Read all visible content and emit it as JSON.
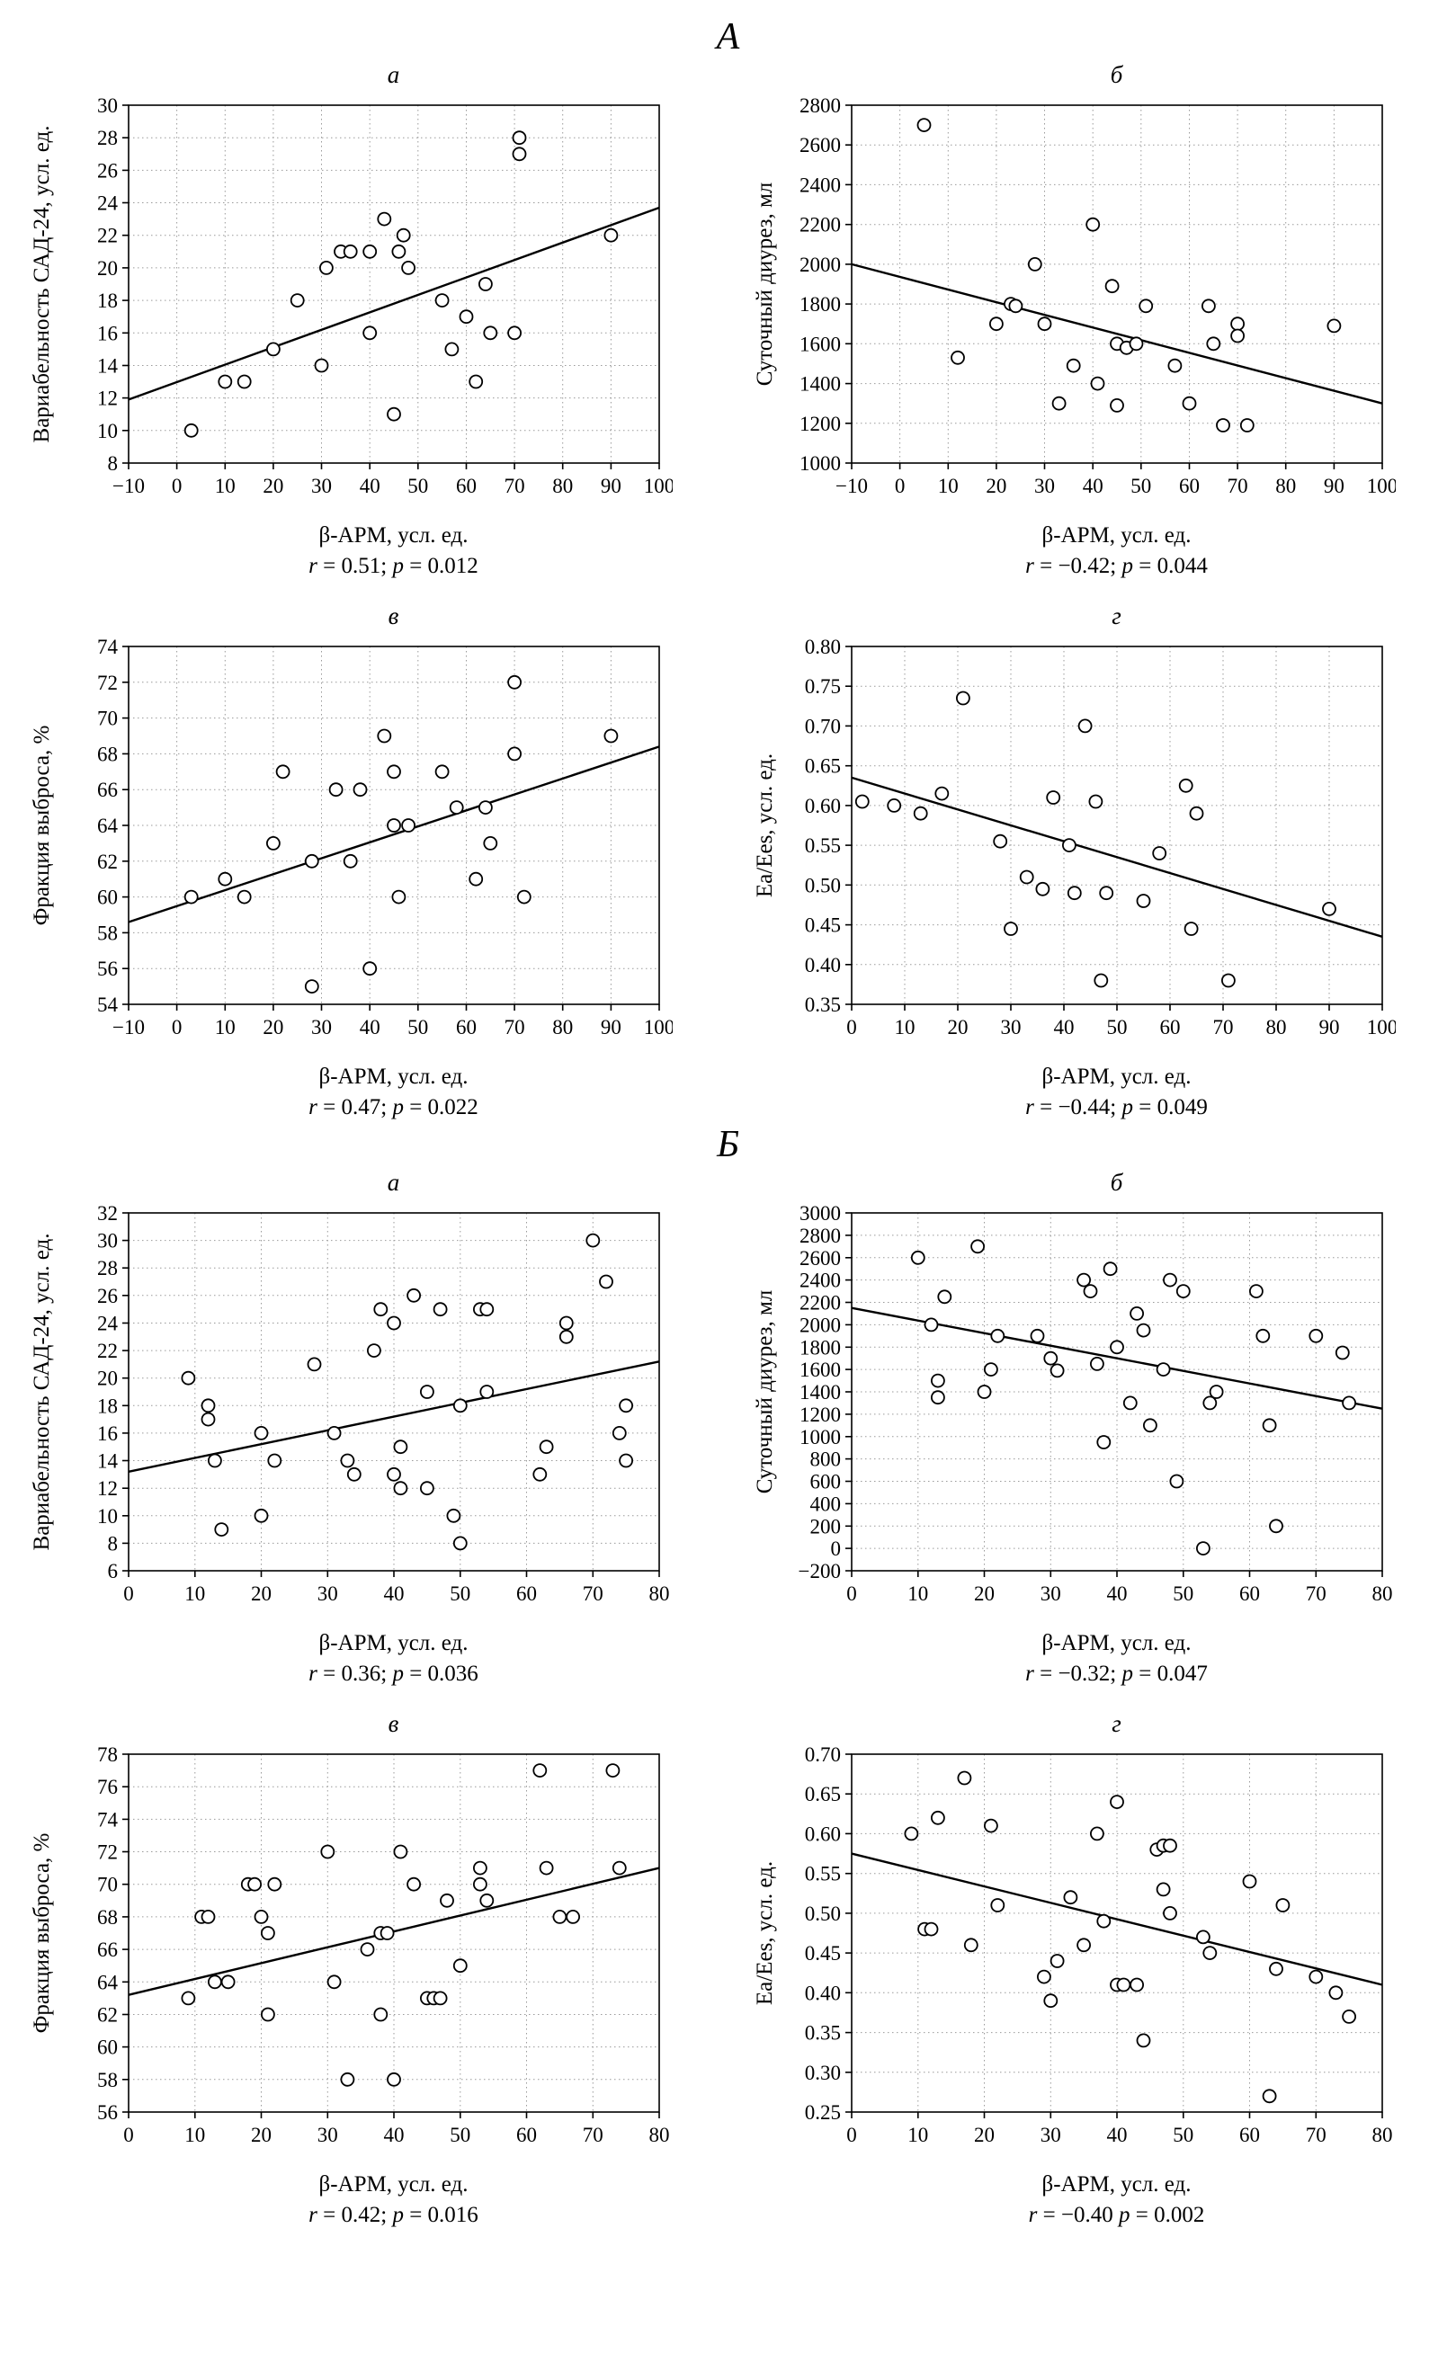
{
  "sections": [
    {
      "label": "А",
      "chart_indexes": [
        0,
        1,
        2,
        3
      ]
    },
    {
      "label": "Б",
      "chart_indexes": [
        4,
        5,
        6,
        7
      ]
    }
  ],
  "chart_data": [
    {
      "panel": "а",
      "type": "scatter",
      "xlabel": "β-АРМ, усл. ед.",
      "ylabel": "Вариабельность САД-24, усл. ед.",
      "xlim": [
        -10,
        100
      ],
      "xstep": 10,
      "xdecimals": 0,
      "ylim": [
        8,
        30
      ],
      "ystep": 2,
      "ydecimals": 0,
      "grid": true,
      "points": [
        [
          3,
          10
        ],
        [
          10,
          13
        ],
        [
          14,
          13
        ],
        [
          20,
          15
        ],
        [
          25,
          18
        ],
        [
          30,
          14
        ],
        [
          31,
          20
        ],
        [
          34,
          21
        ],
        [
          36,
          21
        ],
        [
          40,
          21
        ],
        [
          40,
          16
        ],
        [
          43,
          23
        ],
        [
          45,
          11
        ],
        [
          46,
          21
        ],
        [
          47,
          22
        ],
        [
          48,
          20
        ],
        [
          55,
          18
        ],
        [
          57,
          15
        ],
        [
          60,
          17
        ],
        [
          62,
          13
        ],
        [
          64,
          19
        ],
        [
          65,
          16
        ],
        [
          70,
          16
        ],
        [
          71,
          28
        ],
        [
          71,
          27
        ],
        [
          90,
          22
        ]
      ],
      "trend": [
        [
          -10,
          11.9
        ],
        [
          100,
          23.7
        ]
      ],
      "caption": [
        {
          "t": "r",
          "i": true
        },
        {
          "t": " = 0.51; "
        },
        {
          "t": "p",
          "i": true
        },
        {
          "t": " = 0.012"
        }
      ]
    },
    {
      "panel": "б",
      "type": "scatter",
      "xlabel": "β-АРМ, усл. ед.",
      "ylabel": "Суточный диурез, мл",
      "xlim": [
        -10,
        100
      ],
      "xstep": 10,
      "xdecimals": 0,
      "ylim": [
        1000,
        2800
      ],
      "ystep": 200,
      "ydecimals": 0,
      "grid": true,
      "points": [
        [
          5,
          2700
        ],
        [
          12,
          1530
        ],
        [
          20,
          1700
        ],
        [
          23,
          1800
        ],
        [
          24,
          1790
        ],
        [
          28,
          2000
        ],
        [
          30,
          1700
        ],
        [
          33,
          1300
        ],
        [
          36,
          1490
        ],
        [
          40,
          2200
        ],
        [
          41,
          1400
        ],
        [
          44,
          1890
        ],
        [
          45,
          1600
        ],
        [
          45,
          1290
        ],
        [
          47,
          1580
        ],
        [
          49,
          1600
        ],
        [
          51,
          1790
        ],
        [
          57,
          1490
        ],
        [
          60,
          1300
        ],
        [
          64,
          1790
        ],
        [
          65,
          1600
        ],
        [
          67,
          1190
        ],
        [
          70,
          1700
        ],
        [
          70,
          1640
        ],
        [
          72,
          1190
        ],
        [
          90,
          1690
        ]
      ],
      "trend": [
        [
          -10,
          2000
        ],
        [
          100,
          1300
        ]
      ],
      "caption": [
        {
          "t": "r",
          "i": true
        },
        {
          "t": " = −0.42; "
        },
        {
          "t": "p",
          "i": true
        },
        {
          "t": " = 0.044"
        }
      ]
    },
    {
      "panel": "в",
      "type": "scatter",
      "xlabel": "β-АРМ, усл. ед.",
      "ylabel": "Фракция выброса, %",
      "xlim": [
        -10,
        100
      ],
      "xstep": 10,
      "xdecimals": 0,
      "ylim": [
        54,
        74
      ],
      "ystep": 2,
      "ydecimals": 0,
      "grid": true,
      "points": [
        [
          3,
          60
        ],
        [
          10,
          61
        ],
        [
          14,
          60
        ],
        [
          20,
          63
        ],
        [
          22,
          67
        ],
        [
          28,
          62
        ],
        [
          28,
          55
        ],
        [
          33,
          66
        ],
        [
          36,
          62
        ],
        [
          38,
          66
        ],
        [
          40,
          56
        ],
        [
          43,
          69
        ],
        [
          45,
          67
        ],
        [
          45,
          64
        ],
        [
          46,
          60
        ],
        [
          48,
          64
        ],
        [
          55,
          67
        ],
        [
          58,
          65
        ],
        [
          62,
          61
        ],
        [
          64,
          65
        ],
        [
          65,
          63
        ],
        [
          70,
          72
        ],
        [
          70,
          68
        ],
        [
          72,
          60
        ],
        [
          90,
          69
        ]
      ],
      "trend": [
        [
          -10,
          58.6
        ],
        [
          100,
          68.4
        ]
      ],
      "caption": [
        {
          "t": "r",
          "i": true
        },
        {
          "t": " = 0.47; "
        },
        {
          "t": "p",
          "i": true
        },
        {
          "t": " = 0.022"
        }
      ]
    },
    {
      "panel": "г",
      "type": "scatter",
      "xlabel": "β-АРМ, усл. ед.",
      "ylabel": "Ea/Ees, усл. ед.",
      "xlim": [
        0,
        100
      ],
      "xstep": 10,
      "xdecimals": 0,
      "ylim": [
        0.35,
        0.8
      ],
      "ystep": 0.05,
      "ydecimals": 2,
      "grid": true,
      "points": [
        [
          2,
          0.605
        ],
        [
          8,
          0.6
        ],
        [
          13,
          0.59
        ],
        [
          17,
          0.615
        ],
        [
          21,
          0.735
        ],
        [
          28,
          0.555
        ],
        [
          30,
          0.445
        ],
        [
          33,
          0.51
        ],
        [
          36,
          0.495
        ],
        [
          38,
          0.61
        ],
        [
          41,
          0.55
        ],
        [
          42,
          0.49
        ],
        [
          44,
          0.7
        ],
        [
          46,
          0.605
        ],
        [
          47,
          0.38
        ],
        [
          48,
          0.49
        ],
        [
          55,
          0.48
        ],
        [
          58,
          0.54
        ],
        [
          63,
          0.625
        ],
        [
          64,
          0.445
        ],
        [
          65,
          0.59
        ],
        [
          71,
          0.38
        ],
        [
          90,
          0.47
        ]
      ],
      "trend": [
        [
          0,
          0.635
        ],
        [
          100,
          0.435
        ]
      ],
      "caption": [
        {
          "t": "r",
          "i": true
        },
        {
          "t": " = −0.44; "
        },
        {
          "t": "p",
          "i": true
        },
        {
          "t": " = 0.049"
        }
      ]
    },
    {
      "panel": "а",
      "type": "scatter",
      "xlabel": "β-АРМ, усл. ед.",
      "ylabel": "Вариабельность САД-24, усл. ед.",
      "xlim": [
        0,
        80
      ],
      "xstep": 10,
      "xdecimals": 0,
      "ylim": [
        6,
        32
      ],
      "ystep": 2,
      "ydecimals": 0,
      "grid": true,
      "points": [
        [
          9,
          20
        ],
        [
          12,
          18
        ],
        [
          12,
          17
        ],
        [
          13,
          14
        ],
        [
          14,
          9
        ],
        [
          20,
          16
        ],
        [
          20,
          10
        ],
        [
          22,
          14
        ],
        [
          28,
          21
        ],
        [
          31,
          16
        ],
        [
          33,
          14
        ],
        [
          34,
          13
        ],
        [
          37,
          22
        ],
        [
          38,
          25
        ],
        [
          40,
          24
        ],
        [
          40,
          13
        ],
        [
          41,
          15
        ],
        [
          41,
          12
        ],
        [
          43,
          26
        ],
        [
          45,
          19
        ],
        [
          45,
          12
        ],
        [
          47,
          25
        ],
        [
          49,
          10
        ],
        [
          50,
          8
        ],
        [
          50,
          18
        ],
        [
          53,
          25
        ],
        [
          54,
          25
        ],
        [
          54,
          19
        ],
        [
          62,
          13
        ],
        [
          63,
          15
        ],
        [
          66,
          24
        ],
        [
          66,
          23
        ],
        [
          70,
          30
        ],
        [
          72,
          27
        ],
        [
          74,
          16
        ],
        [
          75,
          18
        ],
        [
          75,
          14
        ]
      ],
      "trend": [
        [
          0,
          13.2
        ],
        [
          80,
          21.2
        ]
      ],
      "caption": [
        {
          "t": "r",
          "i": true
        },
        {
          "t": " = 0.36; "
        },
        {
          "t": "p",
          "i": true
        },
        {
          "t": " = 0.036"
        }
      ]
    },
    {
      "panel": "б",
      "type": "scatter",
      "xlabel": "β-АРМ, усл. ед.",
      "ylabel": "Суточный диурез, мл",
      "xlim": [
        0,
        80
      ],
      "xstep": 10,
      "xdecimals": 0,
      "ylim": [
        -200,
        3000
      ],
      "ystep": 200,
      "ydecimals": 0,
      "grid": true,
      "points": [
        [
          10,
          2600
        ],
        [
          12,
          2000
        ],
        [
          13,
          1500
        ],
        [
          13,
          1350
        ],
        [
          14,
          2250
        ],
        [
          19,
          2700
        ],
        [
          20,
          1400
        ],
        [
          21,
          1600
        ],
        [
          22,
          1900
        ],
        [
          28,
          1900
        ],
        [
          30,
          1700
        ],
        [
          31,
          1590
        ],
        [
          35,
          2400
        ],
        [
          36,
          2300
        ],
        [
          37,
          1650
        ],
        [
          38,
          950
        ],
        [
          39,
          2500
        ],
        [
          40,
          1800
        ],
        [
          42,
          1300
        ],
        [
          43,
          2100
        ],
        [
          44,
          1950
        ],
        [
          45,
          1100
        ],
        [
          47,
          1600
        ],
        [
          48,
          2400
        ],
        [
          49,
          600
        ],
        [
          50,
          2300
        ],
        [
          53,
          0
        ],
        [
          54,
          1300
        ],
        [
          55,
          1400
        ],
        [
          61,
          2300
        ],
        [
          62,
          1900
        ],
        [
          63,
          1100
        ],
        [
          64,
          200
        ],
        [
          70,
          1900
        ],
        [
          74,
          1750
        ],
        [
          75,
          1300
        ]
      ],
      "trend": [
        [
          0,
          2150
        ],
        [
          80,
          1250
        ]
      ],
      "caption": [
        {
          "t": "r",
          "i": true
        },
        {
          "t": " = −0.32; "
        },
        {
          "t": "p",
          "i": true
        },
        {
          "t": " = 0.047"
        }
      ]
    },
    {
      "panel": "в",
      "type": "scatter",
      "xlabel": "β-АРМ, усл. ед.",
      "ylabel": "Фракция выброса, %",
      "xlim": [
        0,
        80
      ],
      "xstep": 10,
      "xdecimals": 0,
      "ylim": [
        56,
        78
      ],
      "ystep": 2,
      "ydecimals": 0,
      "grid": true,
      "points": [
        [
          9,
          63
        ],
        [
          11,
          68
        ],
        [
          12,
          68
        ],
        [
          13,
          64
        ],
        [
          15,
          64
        ],
        [
          18,
          70
        ],
        [
          19,
          70
        ],
        [
          20,
          68
        ],
        [
          21,
          67
        ],
        [
          21,
          62
        ],
        [
          22,
          70
        ],
        [
          30,
          72
        ],
        [
          31,
          64
        ],
        [
          33,
          58
        ],
        [
          36,
          66
        ],
        [
          38,
          67
        ],
        [
          39,
          67
        ],
        [
          38,
          62
        ],
        [
          40,
          58
        ],
        [
          41,
          72
        ],
        [
          43,
          70
        ],
        [
          45,
          63
        ],
        [
          46,
          63
        ],
        [
          47,
          63
        ],
        [
          48,
          69
        ],
        [
          50,
          65
        ],
        [
          53,
          71
        ],
        [
          53,
          70
        ],
        [
          54,
          69
        ],
        [
          62,
          77
        ],
        [
          63,
          71
        ],
        [
          65,
          68
        ],
        [
          67,
          68
        ],
        [
          73,
          77
        ],
        [
          74,
          71
        ]
      ],
      "trend": [
        [
          0,
          63.2
        ],
        [
          80,
          71
        ]
      ],
      "caption": [
        {
          "t": "r",
          "i": true
        },
        {
          "t": " = 0.42; "
        },
        {
          "t": "p",
          "i": true
        },
        {
          "t": " = 0.016"
        }
      ]
    },
    {
      "panel": "г",
      "type": "scatter",
      "xlabel": "β-АРМ, усл. ед.",
      "ylabel": "Ea/Ees, усл. ед.",
      "xlim": [
        0,
        80
      ],
      "xstep": 10,
      "xdecimals": 0,
      "ylim": [
        0.25,
        0.7
      ],
      "ystep": 0.05,
      "ydecimals": 2,
      "grid": true,
      "points": [
        [
          9,
          0.6
        ],
        [
          11,
          0.48
        ],
        [
          12,
          0.48
        ],
        [
          13,
          0.62
        ],
        [
          17,
          0.67
        ],
        [
          18,
          0.46
        ],
        [
          21,
          0.61
        ],
        [
          22,
          0.51
        ],
        [
          29,
          0.42
        ],
        [
          30,
          0.39
        ],
        [
          31,
          0.44
        ],
        [
          33,
          0.52
        ],
        [
          35,
          0.46
        ],
        [
          37,
          0.6
        ],
        [
          38,
          0.49
        ],
        [
          40,
          0.64
        ],
        [
          40,
          0.41
        ],
        [
          41,
          0.41
        ],
        [
          43,
          0.41
        ],
        [
          44,
          0.34
        ],
        [
          46,
          0.58
        ],
        [
          47,
          0.585
        ],
        [
          48,
          0.585
        ],
        [
          47,
          0.53
        ],
        [
          48,
          0.5
        ],
        [
          53,
          0.47
        ],
        [
          54,
          0.45
        ],
        [
          60,
          0.54
        ],
        [
          63,
          0.27
        ],
        [
          64,
          0.43
        ],
        [
          65,
          0.51
        ],
        [
          70,
          0.42
        ],
        [
          73,
          0.4
        ],
        [
          75,
          0.37
        ]
      ],
      "trend": [
        [
          0,
          0.575
        ],
        [
          80,
          0.41
        ]
      ],
      "caption": [
        {
          "t": "r",
          "i": true
        },
        {
          "t": " = −0.40 "
        },
        {
          "t": "p",
          "i": true
        },
        {
          "t": " = 0.002"
        }
      ]
    }
  ]
}
